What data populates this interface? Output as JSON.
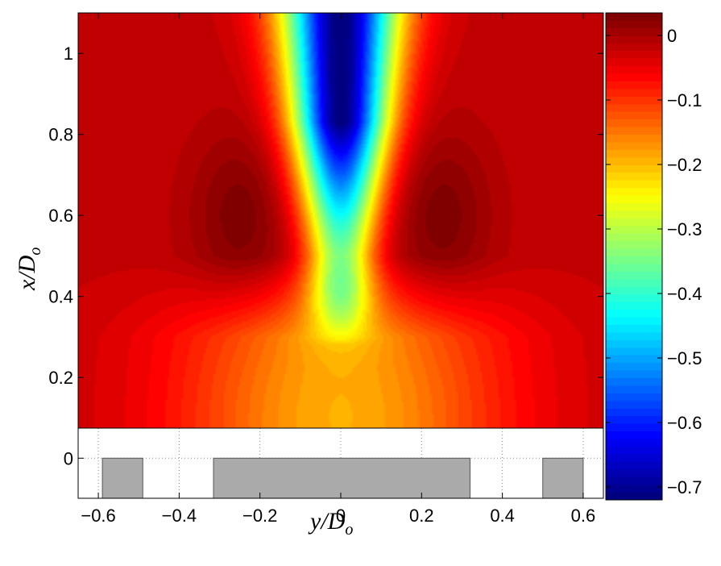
{
  "chart_data": {
    "type": "heatmap",
    "xlabel": "y/D",
    "xlabel_subscript": "o",
    "ylabel": "x/D",
    "ylabel_subscript": "o",
    "xlim": [
      -0.65,
      0.65
    ],
    "ylim_field": [
      0.075,
      1.1
    ],
    "ylim_geometry": [
      -0.1,
      0.075
    ],
    "x_ticks": [
      -0.6,
      -0.4,
      -0.2,
      0,
      0.2,
      0.4,
      0.6
    ],
    "x_tick_labels": [
      "−0.6",
      "−0.4",
      "−0.2",
      "0",
      "0.2",
      "0.4",
      "0.6"
    ],
    "y_ticks": [
      0.2,
      0.4,
      0.6,
      0.8,
      1.0
    ],
    "y_tick_labels": [
      "0.2",
      "0.4",
      "0.6",
      "0.8",
      "1"
    ],
    "geometry_y_ticks": [
      0
    ],
    "geometry_y_tick_labels": [
      "0"
    ],
    "colorbar": {
      "colormap": "jet",
      "range": [
        -0.72,
        0.035
      ],
      "ticks": [
        0,
        -0.1,
        -0.2,
        -0.3,
        -0.4,
        -0.5,
        -0.6,
        -0.7
      ],
      "tick_labels": [
        "0",
        "−0.1",
        "−0.2",
        "−0.3",
        "−0.4",
        "−0.5",
        "−0.6",
        "−0.7"
      ]
    },
    "field_features": [
      {
        "feature": "central jet core (minimum)",
        "y": 0.0,
        "x": 0.9,
        "value": -0.7
      },
      {
        "feature": "left peak",
        "y": -0.25,
        "x": 0.6,
        "value": 0.03
      },
      {
        "feature": "right peak",
        "y": 0.25,
        "x": 0.6,
        "value": 0.03
      },
      {
        "feature": "base plateau near wall",
        "y": 0.0,
        "x": 0.2,
        "value": -0.18
      }
    ],
    "geometry_blocks": [
      {
        "y_start": -0.59,
        "y_end": -0.49
      },
      {
        "y_start": -0.315,
        "y_end": 0.32
      },
      {
        "y_start": 0.5,
        "y_end": 0.6
      }
    ],
    "grid": "dotted (geometry panel only)",
    "colors": {
      "block_fill": "#aaaaaa",
      "block_edge": "#555555",
      "frame": "#000000"
    }
  }
}
